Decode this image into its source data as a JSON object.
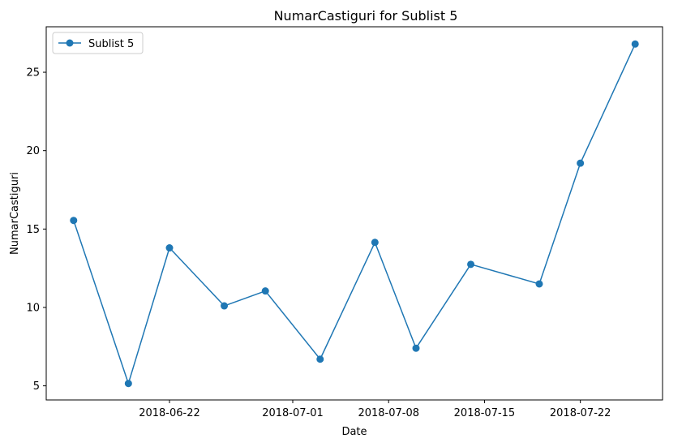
{
  "chart_data": {
    "type": "line",
    "title": "NumarCastiguri for Sublist 5",
    "xlabel": "Date",
    "ylabel": "NumarCastiguri",
    "x_type": "date",
    "xlim": [
      "2018-06-13",
      "2018-07-28"
    ],
    "ylim": [
      4.1,
      27.9
    ],
    "xticks": [
      "2018-06-22",
      "2018-07-01",
      "2018-07-08",
      "2018-07-15",
      "2018-07-22"
    ],
    "yticks": [
      5,
      10,
      15,
      20,
      25
    ],
    "grid": false,
    "legend": {
      "position": "top-left",
      "entries": [
        "Sublist 5"
      ]
    },
    "series": [
      {
        "name": "Sublist 5",
        "color": "#1f77b4",
        "marker": "circle",
        "x": [
          "2018-06-15",
          "2018-06-19",
          "2018-06-22",
          "2018-06-26",
          "2018-06-29",
          "2018-07-03",
          "2018-07-07",
          "2018-07-10",
          "2018-07-14",
          "2018-07-19",
          "2018-07-22",
          "2018-07-26"
        ],
        "y": [
          15.55,
          5.15,
          13.8,
          10.1,
          11.05,
          6.7,
          14.15,
          7.4,
          12.75,
          11.5,
          19.2,
          26.8
        ]
      }
    ]
  }
}
